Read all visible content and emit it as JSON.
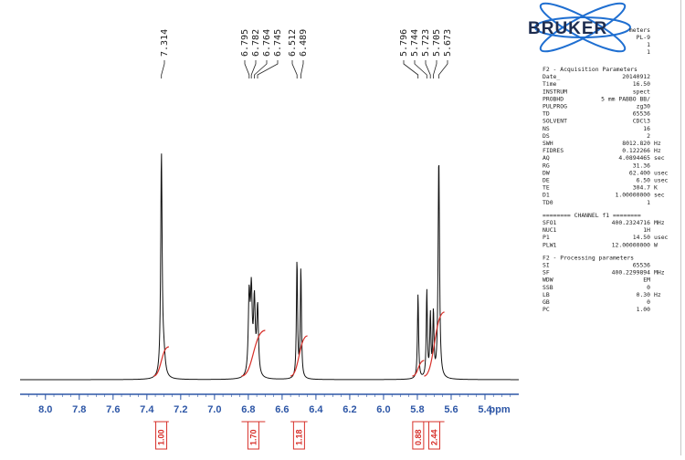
{
  "logo": {
    "text": "BRUKER"
  },
  "header_lines": [
    "meters",
    "PL-9",
    "1",
    "1"
  ],
  "chart_data": {
    "type": "line",
    "title": "",
    "xlabel": "ppm",
    "ylabel": "",
    "x_reversed": true,
    "xlim": [
      8.15,
      5.2
    ],
    "ylim": [
      0,
      1.0
    ],
    "x_ticks": [
      "8.0",
      "7.8",
      "7.6",
      "7.4",
      "7.2",
      "7.0",
      "6.8",
      "6.6",
      "6.4",
      "6.2",
      "6.0",
      "5.8",
      "5.6",
      "5.4"
    ],
    "peak_labels": [
      "7.314",
      "6.795",
      "6.782",
      "6.764",
      "6.745",
      "6.512",
      "6.489",
      "5.796",
      "5.744",
      "5.723",
      "5.705",
      "5.673"
    ],
    "peaks": [
      {
        "ppm": 7.314,
        "height": 0.97,
        "width": 0.005
      },
      {
        "ppm": 7.3,
        "height": 0.09,
        "width": 0.01
      },
      {
        "ppm": 6.795,
        "height": 0.34,
        "width": 0.006
      },
      {
        "ppm": 6.782,
        "height": 0.35,
        "width": 0.006
      },
      {
        "ppm": 6.764,
        "height": 0.32,
        "width": 0.006
      },
      {
        "ppm": 6.745,
        "height": 0.3,
        "width": 0.006
      },
      {
        "ppm": 6.512,
        "height": 0.52,
        "width": 0.004
      },
      {
        "ppm": 6.489,
        "height": 0.48,
        "width": 0.004
      },
      {
        "ppm": 5.796,
        "height": 0.37,
        "width": 0.004
      },
      {
        "ppm": 5.744,
        "height": 0.38,
        "width": 0.004
      },
      {
        "ppm": 5.723,
        "height": 0.27,
        "width": 0.004
      },
      {
        "ppm": 5.705,
        "height": 0.28,
        "width": 0.004
      },
      {
        "ppm": 5.673,
        "height": 0.97,
        "width": 0.005
      }
    ],
    "integrals": [
      {
        "from": 7.36,
        "to": 7.27,
        "label": "1.00"
      },
      {
        "from": 6.84,
        "to": 6.7,
        "label": "1.70"
      },
      {
        "from": 6.55,
        "to": 6.45,
        "label": "1.18"
      },
      {
        "from": 5.83,
        "to": 5.76,
        "label": "0.88"
      },
      {
        "from": 5.76,
        "to": 5.64,
        "label": "2.44"
      }
    ]
  },
  "parameters": {
    "acq_title": "F2 - Acquisition Parameters",
    "acq": [
      [
        "Date_",
        "20140912",
        ""
      ],
      [
        "Time",
        "16.50",
        ""
      ],
      [
        "INSTRUM",
        "spect",
        ""
      ],
      [
        "PROBHD",
        "5 mm PABBO BB/",
        ""
      ],
      [
        "PULPROG",
        "zg30",
        ""
      ],
      [
        "TD",
        "65536",
        ""
      ],
      [
        "SOLVENT",
        "CDCl3",
        ""
      ],
      [
        "NS",
        "16",
        ""
      ],
      [
        "DS",
        "2",
        ""
      ],
      [
        "SWH",
        "8012.820",
        "Hz"
      ],
      [
        "FIDRES",
        "0.122266",
        "Hz"
      ],
      [
        "AQ",
        "4.0894465",
        "sec"
      ],
      [
        "RG",
        "31.36",
        ""
      ],
      [
        "DW",
        "62.400",
        "usec"
      ],
      [
        "DE",
        "6.50",
        "usec"
      ],
      [
        "TE",
        "304.7",
        "K"
      ],
      [
        "D1",
        "1.00000000",
        "sec"
      ],
      [
        "TD0",
        "1",
        ""
      ]
    ],
    "channel_title": "======== CHANNEL f1 ========",
    "channel": [
      [
        "SFO1",
        "400.2324716",
        "MHz"
      ],
      [
        "NUC1",
        "1H",
        ""
      ],
      [
        "P1",
        "14.50",
        "usec"
      ],
      [
        "PLW1",
        "12.00000000",
        "W"
      ]
    ],
    "proc_title": "F2 - Processing parameters",
    "proc": [
      [
        "SI",
        "65536",
        ""
      ],
      [
        "SF",
        "400.2299894",
        "MHz"
      ],
      [
        "WDW",
        "EM",
        ""
      ],
      [
        "SSB",
        "0",
        ""
      ],
      [
        "LB",
        "0.30",
        "Hz"
      ],
      [
        "GB",
        "0",
        ""
      ],
      [
        "PC",
        "1.00",
        ""
      ]
    ]
  }
}
